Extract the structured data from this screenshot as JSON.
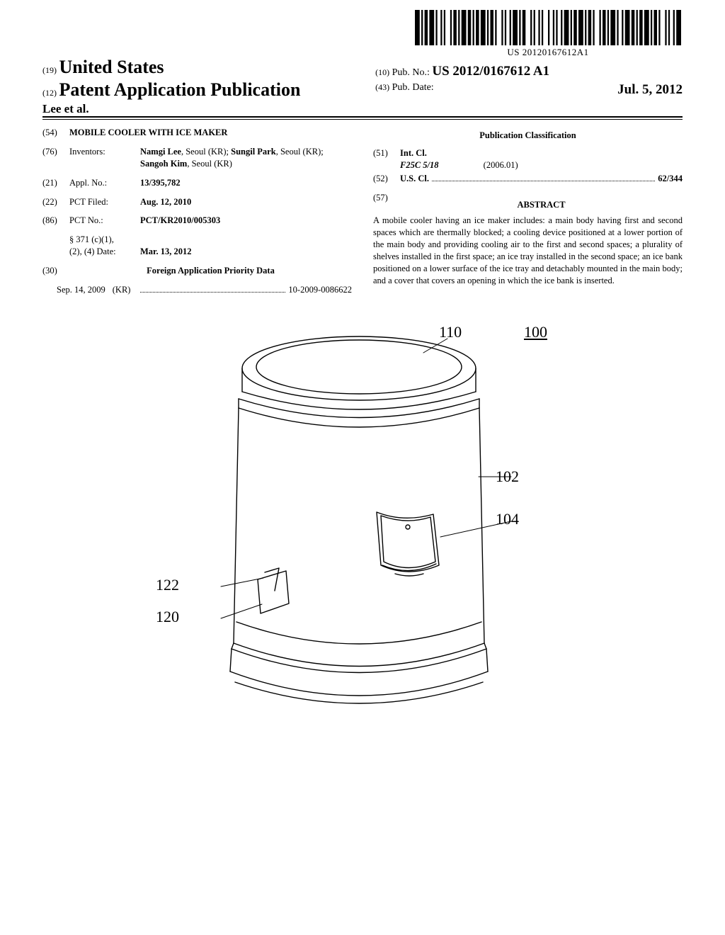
{
  "barcode": {
    "text": "US 20120167612A1",
    "bars": [
      3,
      1,
      1,
      1,
      2,
      1,
      3,
      1,
      1,
      2,
      1,
      1,
      1,
      3,
      1,
      1,
      2,
      1,
      1,
      1,
      3,
      1,
      2,
      1,
      1,
      1,
      2,
      1,
      3,
      1,
      1,
      1,
      2,
      1,
      1,
      3,
      1,
      1,
      1,
      2,
      1,
      1,
      3,
      1,
      1,
      1,
      2,
      3,
      1,
      1,
      1,
      2,
      1,
      1,
      1,
      3,
      1,
      2,
      1,
      1,
      1,
      2,
      1,
      1,
      3,
      1,
      1,
      1,
      2,
      1,
      3,
      1,
      1,
      1,
      2,
      1,
      1,
      3,
      1,
      1,
      2,
      1,
      1,
      1,
      3,
      1,
      1,
      2,
      1,
      1,
      3,
      1,
      2,
      1,
      1,
      1,
      2,
      1,
      3,
      1,
      1,
      1,
      2,
      1,
      1,
      3,
      1,
      1,
      1,
      2,
      1,
      1,
      3
    ]
  },
  "header": {
    "country_code": "(19)",
    "country": "United States",
    "pub_code": "(12)",
    "pub_label": "Patent Application Publication",
    "authors_short": "Lee et al.",
    "pubno_code": "(10)",
    "pubno_label": "Pub. No.:",
    "pubno": "US 2012/0167612 A1",
    "pubdate_code": "(43)",
    "pubdate_label": "Pub. Date:",
    "pubdate": "Jul. 5, 2012"
  },
  "left": {
    "title_code": "(54)",
    "title": "MOBILE COOLER WITH ICE MAKER",
    "inventors_code": "(76)",
    "inventors_label": "Inventors:",
    "inventors_html": "Namgi Lee, Seoul (KR); Sungil Park, Seoul (KR); Sangoh Kim, Seoul (KR)",
    "inventors_names": [
      "Namgi Lee",
      "Sungil Park",
      "Sangoh Kim"
    ],
    "inventors_loc": ", Seoul (KR); ",
    "inventors_loc_last": ", Seoul (KR)",
    "applno_code": "(21)",
    "applno_label": "Appl. No.:",
    "applno": "13/395,782",
    "pctfiled_code": "(22)",
    "pctfiled_label": "PCT Filed:",
    "pctfiled": "Aug. 12, 2010",
    "pctno_code": "(86)",
    "pctno_label": "PCT No.:",
    "pctno": "PCT/KR2010/005303",
    "s371_label": "§ 371 (c)(1),\n(2), (4) Date:",
    "s371_label_a": "§ 371 (c)(1),",
    "s371_label_b": "(2), (4) Date:",
    "s371_date": "Mar. 13, 2012",
    "foreign_code": "(30)",
    "foreign_head": "Foreign Application Priority Data",
    "foreign_date": "Sep. 14, 2009",
    "foreign_country": "(KR)",
    "foreign_num": "10-2009-0086622"
  },
  "right": {
    "pubclass_head": "Publication Classification",
    "intcl_code": "(51)",
    "intcl_label": "Int. Cl.",
    "intcl_class": "F25C 5/18",
    "intcl_year": "(2006.01)",
    "uscl_code": "(52)",
    "uscl_label": "U.S. Cl.",
    "uscl_val": "62/344",
    "abstract_code": "(57)",
    "abstract_head": "ABSTRACT",
    "abstract": "A mobile cooler having an ice maker includes: a main body having first and second spaces which are thermally blocked; a cooling device positioned at a lower portion of the main body and providing cooling air to the first and second spaces; a plurality of shelves installed in the first space; an ice tray installed in the second space; an ice bank positioned on a lower surface of the ice tray and detachably mounted in the main body; and a cover that covers an opening in which the ice bank is inserted."
  },
  "figure": {
    "callouts": {
      "n110": "110",
      "n100": "100",
      "n102": "102",
      "n104": "104",
      "n122": "122",
      "n120": "120"
    },
    "stroke": "#000000",
    "fill": "#ffffff",
    "stroke_width": 1.4
  }
}
